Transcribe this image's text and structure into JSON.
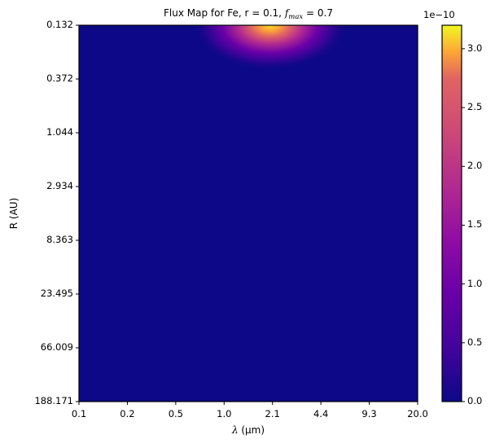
{
  "chart_data": {
    "type": "heatmap",
    "title": {
      "prefix": "Flux Map for Fe, r = 0.1, ",
      "f_symbol": "f",
      "f_subscript": "max",
      "suffix": " = 0.7"
    },
    "xlabel": {
      "symbol": "λ",
      "text": " (μm)"
    },
    "ylabel": "R (AU)",
    "x_tick_labels": [
      "0.1",
      "0.2",
      "0.5",
      "1.0",
      "2.1",
      "4.4",
      "9.3",
      "20.0"
    ],
    "y_tick_labels": [
      "0.132",
      "0.372",
      "1.044",
      "2.934",
      "8.363",
      "23.495",
      "66.009",
      "188.171"
    ],
    "x_range": [
      0.1,
      20.0
    ],
    "y_range": [
      0.132,
      188.171
    ],
    "x_scale": "log",
    "y_scale": "log",
    "y_inverted": true,
    "colormap": "plasma",
    "colorbar": {
      "exponent_label": "1e−10",
      "ticks": [
        "0.0",
        "0.5",
        "1.0",
        "1.5",
        "2.0",
        "2.5",
        "3.0"
      ],
      "tick_values": [
        0.0,
        0.5,
        1.0,
        1.5,
        2.0,
        2.5,
        3.0
      ],
      "range": [
        0.0,
        3.2
      ]
    },
    "peak": {
      "lambda": 2.1,
      "R": 0.132,
      "value": 3.2
    },
    "grid": false
  }
}
